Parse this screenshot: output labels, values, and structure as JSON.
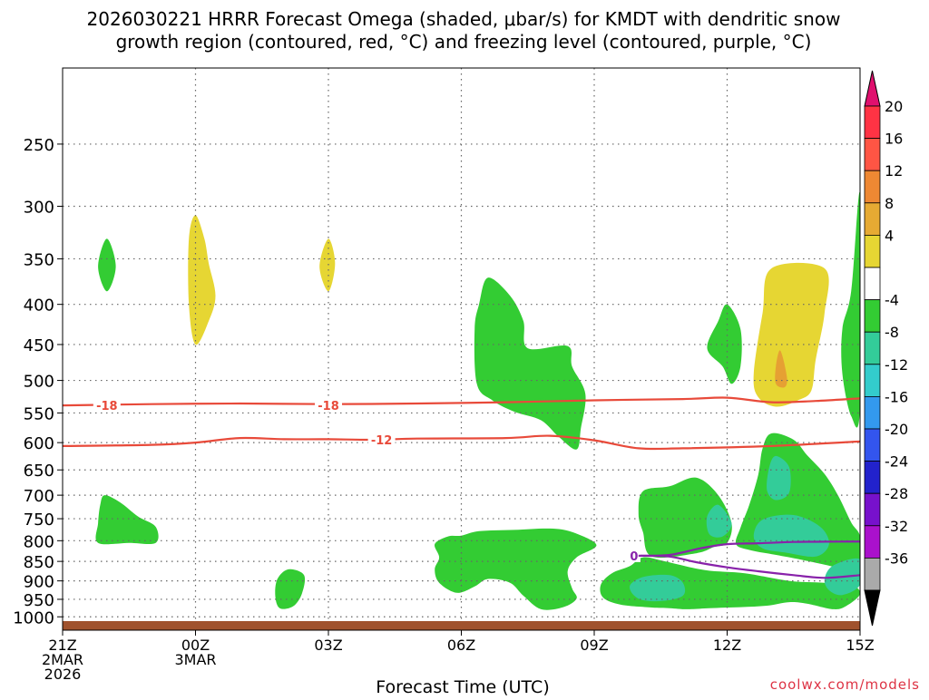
{
  "title_line1": "2026030221 HRRR Forecast Omega (shaded, μbar/s) for KMDT with dendritic snow",
  "title_line2": "growth region (contoured, red, °C) and freezing level (contoured, purple, °C)",
  "credit": "coolwx.com/models",
  "colors": {
    "light_green": "#33cc33",
    "teal": "#33cc99",
    "yellow": "#e6d633",
    "orange": "#e6a033",
    "snow_contour": "#e84a3a",
    "freezing_contour": "#8822aa",
    "ground": "#a0522d"
  },
  "chart_data": {
    "type": "contour",
    "xlabel": "Forecast Time (UTC)",
    "x_ticks": [
      {
        "hour": 0,
        "lines": [
          "21Z",
          "2MAR",
          "2026"
        ]
      },
      {
        "hour": 3,
        "lines": [
          "00Z",
          "3MAR"
        ]
      },
      {
        "hour": 6,
        "lines": [
          "03Z"
        ]
      },
      {
        "hour": 9,
        "lines": [
          "06Z"
        ]
      },
      {
        "hour": 12,
        "lines": [
          "09Z"
        ]
      },
      {
        "hour": 15,
        "lines": [
          "12Z"
        ]
      },
      {
        "hour": 18,
        "lines": [
          "15Z"
        ]
      }
    ],
    "xlim": [
      0,
      18
    ],
    "y_ticks": [
      250,
      300,
      350,
      400,
      450,
      500,
      550,
      600,
      650,
      700,
      750,
      800,
      850,
      900,
      950,
      1000
    ],
    "ylim": [
      1040,
      200
    ],
    "y_scale": "log",
    "colorbar": {
      "labels": [
        "20",
        "16",
        "12",
        "8",
        "4",
        "-4",
        "-8",
        "-12",
        "-16",
        "-20",
        "-24",
        "-28",
        "-32",
        "-36"
      ],
      "bins": [
        "#ff3344",
        "#ff5544",
        "#ee8833",
        "#e6aa33",
        "#e6d633",
        "#ffffff",
        "#33cc33",
        "#33cc99",
        "#33cccc",
        "#3399ee",
        "#3355ee",
        "#2222cc",
        "#7711cc",
        "#aa11cc",
        "#aaaaaa"
      ],
      "top_arrow": "#e0106e",
      "bottom_arrow": "#000000"
    },
    "contours": [
      {
        "label": "-18",
        "color": "#e84a3a",
        "label_at": [
          [
            1,
            538
          ],
          [
            6,
            538
          ]
        ],
        "points": [
          [
            0,
            538
          ],
          [
            2,
            536
          ],
          [
            4,
            535
          ],
          [
            6,
            536
          ],
          [
            8,
            535
          ],
          [
            10,
            533
          ],
          [
            12,
            530
          ],
          [
            14,
            528
          ],
          [
            15,
            526
          ],
          [
            16,
            533
          ],
          [
            17,
            531
          ],
          [
            18,
            527
          ]
        ]
      },
      {
        "label": "-12",
        "color": "#e84a3a",
        "label_at": [
          [
            7.2,
            595
          ]
        ],
        "points": [
          [
            0,
            606
          ],
          [
            2,
            604
          ],
          [
            3,
            600
          ],
          [
            4,
            592
          ],
          [
            5,
            594
          ],
          [
            6,
            594
          ],
          [
            7,
            595
          ],
          [
            8,
            593
          ],
          [
            10,
            592
          ],
          [
            11,
            588
          ],
          [
            12,
            596
          ],
          [
            13,
            610
          ],
          [
            14,
            610
          ],
          [
            16,
            606
          ],
          [
            18,
            598
          ]
        ]
      },
      {
        "label": "0",
        "color": "#8822aa",
        "label_at": [
          [
            12.9,
            836
          ]
        ],
        "points": [
          [
            13,
            836
          ],
          [
            13.7,
            834
          ],
          [
            14.4,
            818
          ],
          [
            15,
            808
          ],
          [
            15.7,
            806
          ],
          [
            16.5,
            803
          ],
          [
            17.5,
            802
          ],
          [
            18,
            802
          ]
        ]
      },
      {
        "label": "",
        "color": "#8822aa",
        "label_at": [],
        "points": [
          [
            13,
            836
          ],
          [
            13.7,
            838
          ],
          [
            14.3,
            852
          ],
          [
            15,
            865
          ],
          [
            15.7,
            875
          ],
          [
            16.5,
            885
          ],
          [
            17.2,
            892
          ],
          [
            18,
            885
          ]
        ]
      }
    ],
    "shaded": [
      {
        "color": "#33cc33",
        "points": [
          [
            1,
            330
          ],
          [
            1.2,
            358
          ],
          [
            1,
            385
          ],
          [
            0.8,
            358
          ]
        ]
      },
      {
        "color": "#33cc33",
        "points": [
          [
            0.95,
            700
          ],
          [
            1.3,
            715
          ],
          [
            1.7,
            745
          ],
          [
            2.1,
            768
          ],
          [
            2.1,
            805
          ],
          [
            1.5,
            805
          ],
          [
            0.8,
            805
          ],
          [
            0.8,
            760
          ],
          [
            0.85,
            720
          ]
        ]
      },
      {
        "color": "#33cc33",
        "points": [
          [
            5.1,
            870
          ],
          [
            5.45,
            885
          ],
          [
            5.4,
            935
          ],
          [
            5.2,
            970
          ],
          [
            4.9,
            975
          ],
          [
            4.8,
            940
          ],
          [
            4.85,
            895
          ]
        ]
      },
      {
        "color": "#33cc33",
        "points": [
          [
            9.6,
            370
          ],
          [
            10.1,
            390
          ],
          [
            10.4,
            420
          ],
          [
            10.5,
            455
          ],
          [
            11.4,
            452
          ],
          [
            11.5,
            480
          ],
          [
            11.8,
            520
          ],
          [
            11.7,
            575
          ],
          [
            11.6,
            612
          ],
          [
            11.2,
            590
          ],
          [
            10.8,
            562
          ],
          [
            10.2,
            548
          ],
          [
            9.7,
            530
          ],
          [
            9.35,
            505
          ],
          [
            9.3,
            430
          ],
          [
            9.4,
            400
          ]
        ]
      },
      {
        "color": "#33cc33",
        "points": [
          [
            8.4,
            808
          ],
          [
            8.7,
            790
          ],
          [
            9,
            788
          ],
          [
            9.4,
            778
          ],
          [
            10.2,
            775
          ],
          [
            11,
            772
          ],
          [
            11.5,
            780
          ],
          [
            12.05,
            810
          ],
          [
            11.6,
            840
          ],
          [
            11.4,
            875
          ],
          [
            11.5,
            920
          ],
          [
            11.6,
            948
          ],
          [
            11.3,
            972
          ],
          [
            10.8,
            978
          ],
          [
            10.4,
            940
          ],
          [
            10.1,
            905
          ],
          [
            9.6,
            895
          ],
          [
            9.3,
            915
          ],
          [
            8.9,
            932
          ],
          [
            8.5,
            905
          ],
          [
            8.4,
            870
          ],
          [
            8.5,
            840
          ]
        ]
      },
      {
        "color": "#33cc33",
        "points": [
          [
            15.0,
            400
          ],
          [
            15.3,
            430
          ],
          [
            15.3,
            480
          ],
          [
            15.1,
            505
          ],
          [
            14.9,
            480
          ],
          [
            14.55,
            455
          ],
          [
            14.8,
            420
          ]
        ]
      },
      {
        "color": "#33cc33",
        "points": [
          [
            18.0,
            290
          ],
          [
            18.0,
            540
          ],
          [
            17.8,
            555
          ],
          [
            17.6,
            490
          ],
          [
            17.6,
            430
          ],
          [
            17.8,
            385
          ]
        ]
      },
      {
        "color": "#33cc33",
        "points": [
          [
            13.1,
            692
          ],
          [
            13.7,
            682
          ],
          [
            14.3,
            665
          ],
          [
            14.8,
            700
          ],
          [
            15.1,
            760
          ],
          [
            15.0,
            805
          ],
          [
            14.7,
            815
          ],
          [
            14.3,
            830
          ],
          [
            13.3,
            838
          ],
          [
            13.1,
            780
          ],
          [
            13.0,
            740
          ]
        ]
      },
      {
        "color": "#33cc33",
        "points": [
          [
            13.1,
            840
          ],
          [
            13.6,
            850
          ],
          [
            14.5,
            872
          ],
          [
            15.4,
            880
          ],
          [
            16.4,
            900
          ],
          [
            17.2,
            905
          ],
          [
            17.8,
            910
          ],
          [
            18.0,
            935
          ],
          [
            17.7,
            968
          ],
          [
            17.4,
            978
          ],
          [
            16.8,
            962
          ],
          [
            16.4,
            958
          ],
          [
            15.9,
            968
          ],
          [
            15.3,
            972
          ],
          [
            14.6,
            975
          ],
          [
            14.1,
            978
          ],
          [
            13.7,
            975
          ],
          [
            13.3,
            973
          ],
          [
            12.6,
            965
          ],
          [
            12.2,
            945
          ],
          [
            12.15,
            910
          ],
          [
            12.4,
            880
          ],
          [
            12.8,
            862
          ]
        ]
      },
      {
        "color": "#33cc33",
        "points": [
          [
            16.0,
            584
          ],
          [
            16.5,
            595
          ],
          [
            16.8,
            622
          ],
          [
            17.2,
            658
          ],
          [
            17.5,
            700
          ],
          [
            17.8,
            758
          ],
          [
            18.0,
            790
          ],
          [
            18.0,
            855
          ],
          [
            17.7,
            870
          ],
          [
            17.2,
            858
          ],
          [
            16.5,
            842
          ],
          [
            16.0,
            832
          ],
          [
            15.5,
            822
          ],
          [
            15.2,
            808
          ],
          [
            15.3,
            770
          ],
          [
            15.5,
            720
          ],
          [
            15.7,
            660
          ],
          [
            15.8,
            610
          ]
        ]
      },
      {
        "color": "#33cc99",
        "points": [
          [
            13.1,
            890
          ],
          [
            13.7,
            885
          ],
          [
            14.0,
            905
          ],
          [
            14.0,
            940
          ],
          [
            13.5,
            955
          ],
          [
            13.0,
            948
          ],
          [
            12.8,
            915
          ]
        ]
      },
      {
        "color": "#33cc99",
        "points": [
          [
            14.8,
            720
          ],
          [
            15.1,
            760
          ],
          [
            14.9,
            790
          ],
          [
            14.6,
            785
          ],
          [
            14.55,
            745
          ]
        ]
      },
      {
        "color": "#33cc99",
        "points": [
          [
            16.1,
            624
          ],
          [
            16.4,
            645
          ],
          [
            16.4,
            695
          ],
          [
            16.1,
            710
          ],
          [
            15.9,
            690
          ],
          [
            15.95,
            645
          ]
        ]
      },
      {
        "color": "#33cc99",
        "points": [
          [
            15.8,
            752
          ],
          [
            16.5,
            742
          ],
          [
            17.1,
            768
          ],
          [
            17.3,
            808
          ],
          [
            17.0,
            838
          ],
          [
            16.3,
            828
          ],
          [
            15.8,
            818
          ],
          [
            15.6,
            790
          ]
        ]
      },
      {
        "color": "#33cc99",
        "points": [
          [
            17.4,
            860
          ],
          [
            18.0,
            845
          ],
          [
            18.0,
            910
          ],
          [
            17.6,
            938
          ],
          [
            17.3,
            925
          ],
          [
            17.2,
            895
          ]
        ]
      },
      {
        "color": "#e6d633",
        "points": [
          [
            3.0,
            308
          ],
          [
            3.2,
            330
          ],
          [
            3.3,
            355
          ],
          [
            3.45,
            390
          ],
          [
            3.3,
            420
          ],
          [
            3.0,
            450
          ],
          [
            2.85,
            400
          ],
          [
            2.85,
            330
          ]
        ]
      },
      {
        "color": "#e6d633",
        "points": [
          [
            6.0,
            330
          ],
          [
            6.15,
            355
          ],
          [
            6.0,
            385
          ],
          [
            5.8,
            358
          ]
        ]
      },
      {
        "color": "#e6d633",
        "points": [
          [
            16.0,
            360
          ],
          [
            17.2,
            360
          ],
          [
            17.2,
            410
          ],
          [
            17.0,
            470
          ],
          [
            16.9,
            515
          ],
          [
            16.6,
            530
          ],
          [
            16.1,
            540
          ],
          [
            15.7,
            525
          ],
          [
            15.6,
            490
          ],
          [
            15.8,
            410
          ]
        ]
      },
      {
        "color": "#e6a033",
        "points": [
          [
            16.2,
            458
          ],
          [
            16.35,
            495
          ],
          [
            16.3,
            510
          ],
          [
            16.1,
            505
          ],
          [
            16.1,
            480
          ]
        ]
      }
    ]
  }
}
